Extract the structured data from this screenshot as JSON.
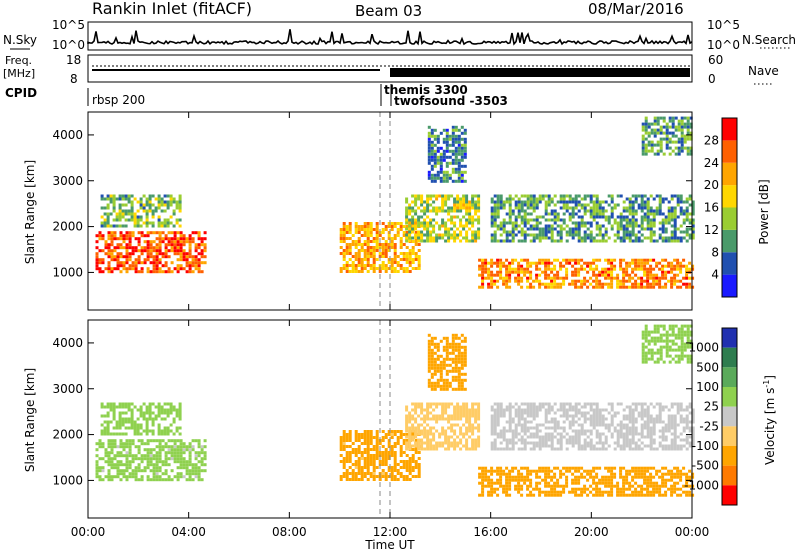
{
  "header": {
    "station": "Rankin Inlet (fitACF)",
    "beam": "Beam 03",
    "date": "08/Mar/2016"
  },
  "noise_panel": {
    "left_label": "N.Sky",
    "right_label": "N.Search",
    "left_ticks": [
      "10^5",
      "10^0"
    ],
    "right_ticks": [
      "10^5",
      "10^0"
    ]
  },
  "freq_panel": {
    "label_line1": "Freq.",
    "label_line2": "[MHz]",
    "right_label": "Nave",
    "left_ticks": [
      "18",
      "8"
    ],
    "right_ticks": [
      "60",
      "0"
    ]
  },
  "cpid_panel": {
    "label": "CPID",
    "entries": [
      "rbsp 200",
      "themis 3300",
      "twofsound -3503"
    ]
  },
  "x_axis": {
    "label": "Time UT",
    "ticks": [
      "00:00",
      "04:00",
      "08:00",
      "12:00",
      "16:00",
      "20:00",
      "00:00"
    ]
  },
  "power_panel": {
    "ylabel": "Slant Range [km]",
    "yticks": [
      "1000",
      "2000",
      "3000",
      "4000"
    ],
    "colorbar_label": "Power [dB]",
    "colorbar_ticks": [
      "4",
      "8",
      "12",
      "16",
      "20",
      "24",
      "28"
    ]
  },
  "velocity_panel": {
    "ylabel": "Slant Range [km]",
    "yticks": [
      "1000",
      "2000",
      "3000",
      "4000"
    ],
    "colorbar_label": "Velocity [m s",
    "colorbar_label_sup": "-1",
    "colorbar_label_end": "]",
    "colorbar_ticks": [
      "1000",
      "500",
      "100",
      "25",
      "-25",
      "-100",
      "-500",
      "-1000"
    ]
  },
  "colors": {
    "power_scale": [
      "#1a1aff",
      "#2050b0",
      "#4a9a6a",
      "#9acd32",
      "#ffd700",
      "#ffa500",
      "#ff6000",
      "#ff0000"
    ],
    "velocity_scale": [
      "#2030b0",
      "#2e7d4f",
      "#5aaa5a",
      "#8fd14f",
      "#c8c8c8",
      "#ffcc66",
      "#ffa500",
      "#ff7a00",
      "#ff0000"
    ]
  },
  "chart_data": {
    "type": "heatmap",
    "x_range_hours": [
      0,
      24
    ],
    "y_range_km": [
      180,
      4500
    ],
    "power_range_db": [
      0,
      30
    ],
    "velocity_range_ms": [
      -1200,
      1200
    ],
    "cpid_switch_hours": [
      11.5,
      11.9
    ],
    "backscatter_regions": [
      {
        "t": [
          0.3,
          4.6
        ],
        "r": [
          1000,
          1900
        ],
        "power": 25,
        "velocity": 40
      },
      {
        "t": [
          0.5,
          3.6
        ],
        "r": [
          2000,
          2700
        ],
        "power": 12,
        "velocity": 60
      },
      {
        "t": [
          10.0,
          13.2
        ],
        "r": [
          1000,
          2100
        ],
        "power": 20,
        "velocity": -160
      },
      {
        "t": [
          12.6,
          15.5
        ],
        "r": [
          1700,
          2700
        ],
        "power": 14,
        "velocity": -60
      },
      {
        "t": [
          15.5,
          24.0
        ],
        "r": [
          700,
          1300
        ],
        "power": 22,
        "velocity": -200
      },
      {
        "t": [
          16.0,
          24.0
        ],
        "r": [
          1700,
          2700
        ],
        "power": 10,
        "velocity": 15
      },
      {
        "t": [
          13.5,
          15.0
        ],
        "r": [
          3000,
          4200
        ],
        "power": 8,
        "velocity": -300
      },
      {
        "t": [
          22.0,
          24.0
        ],
        "r": [
          3600,
          4400
        ],
        "power": 10,
        "velocity": 50
      }
    ]
  }
}
